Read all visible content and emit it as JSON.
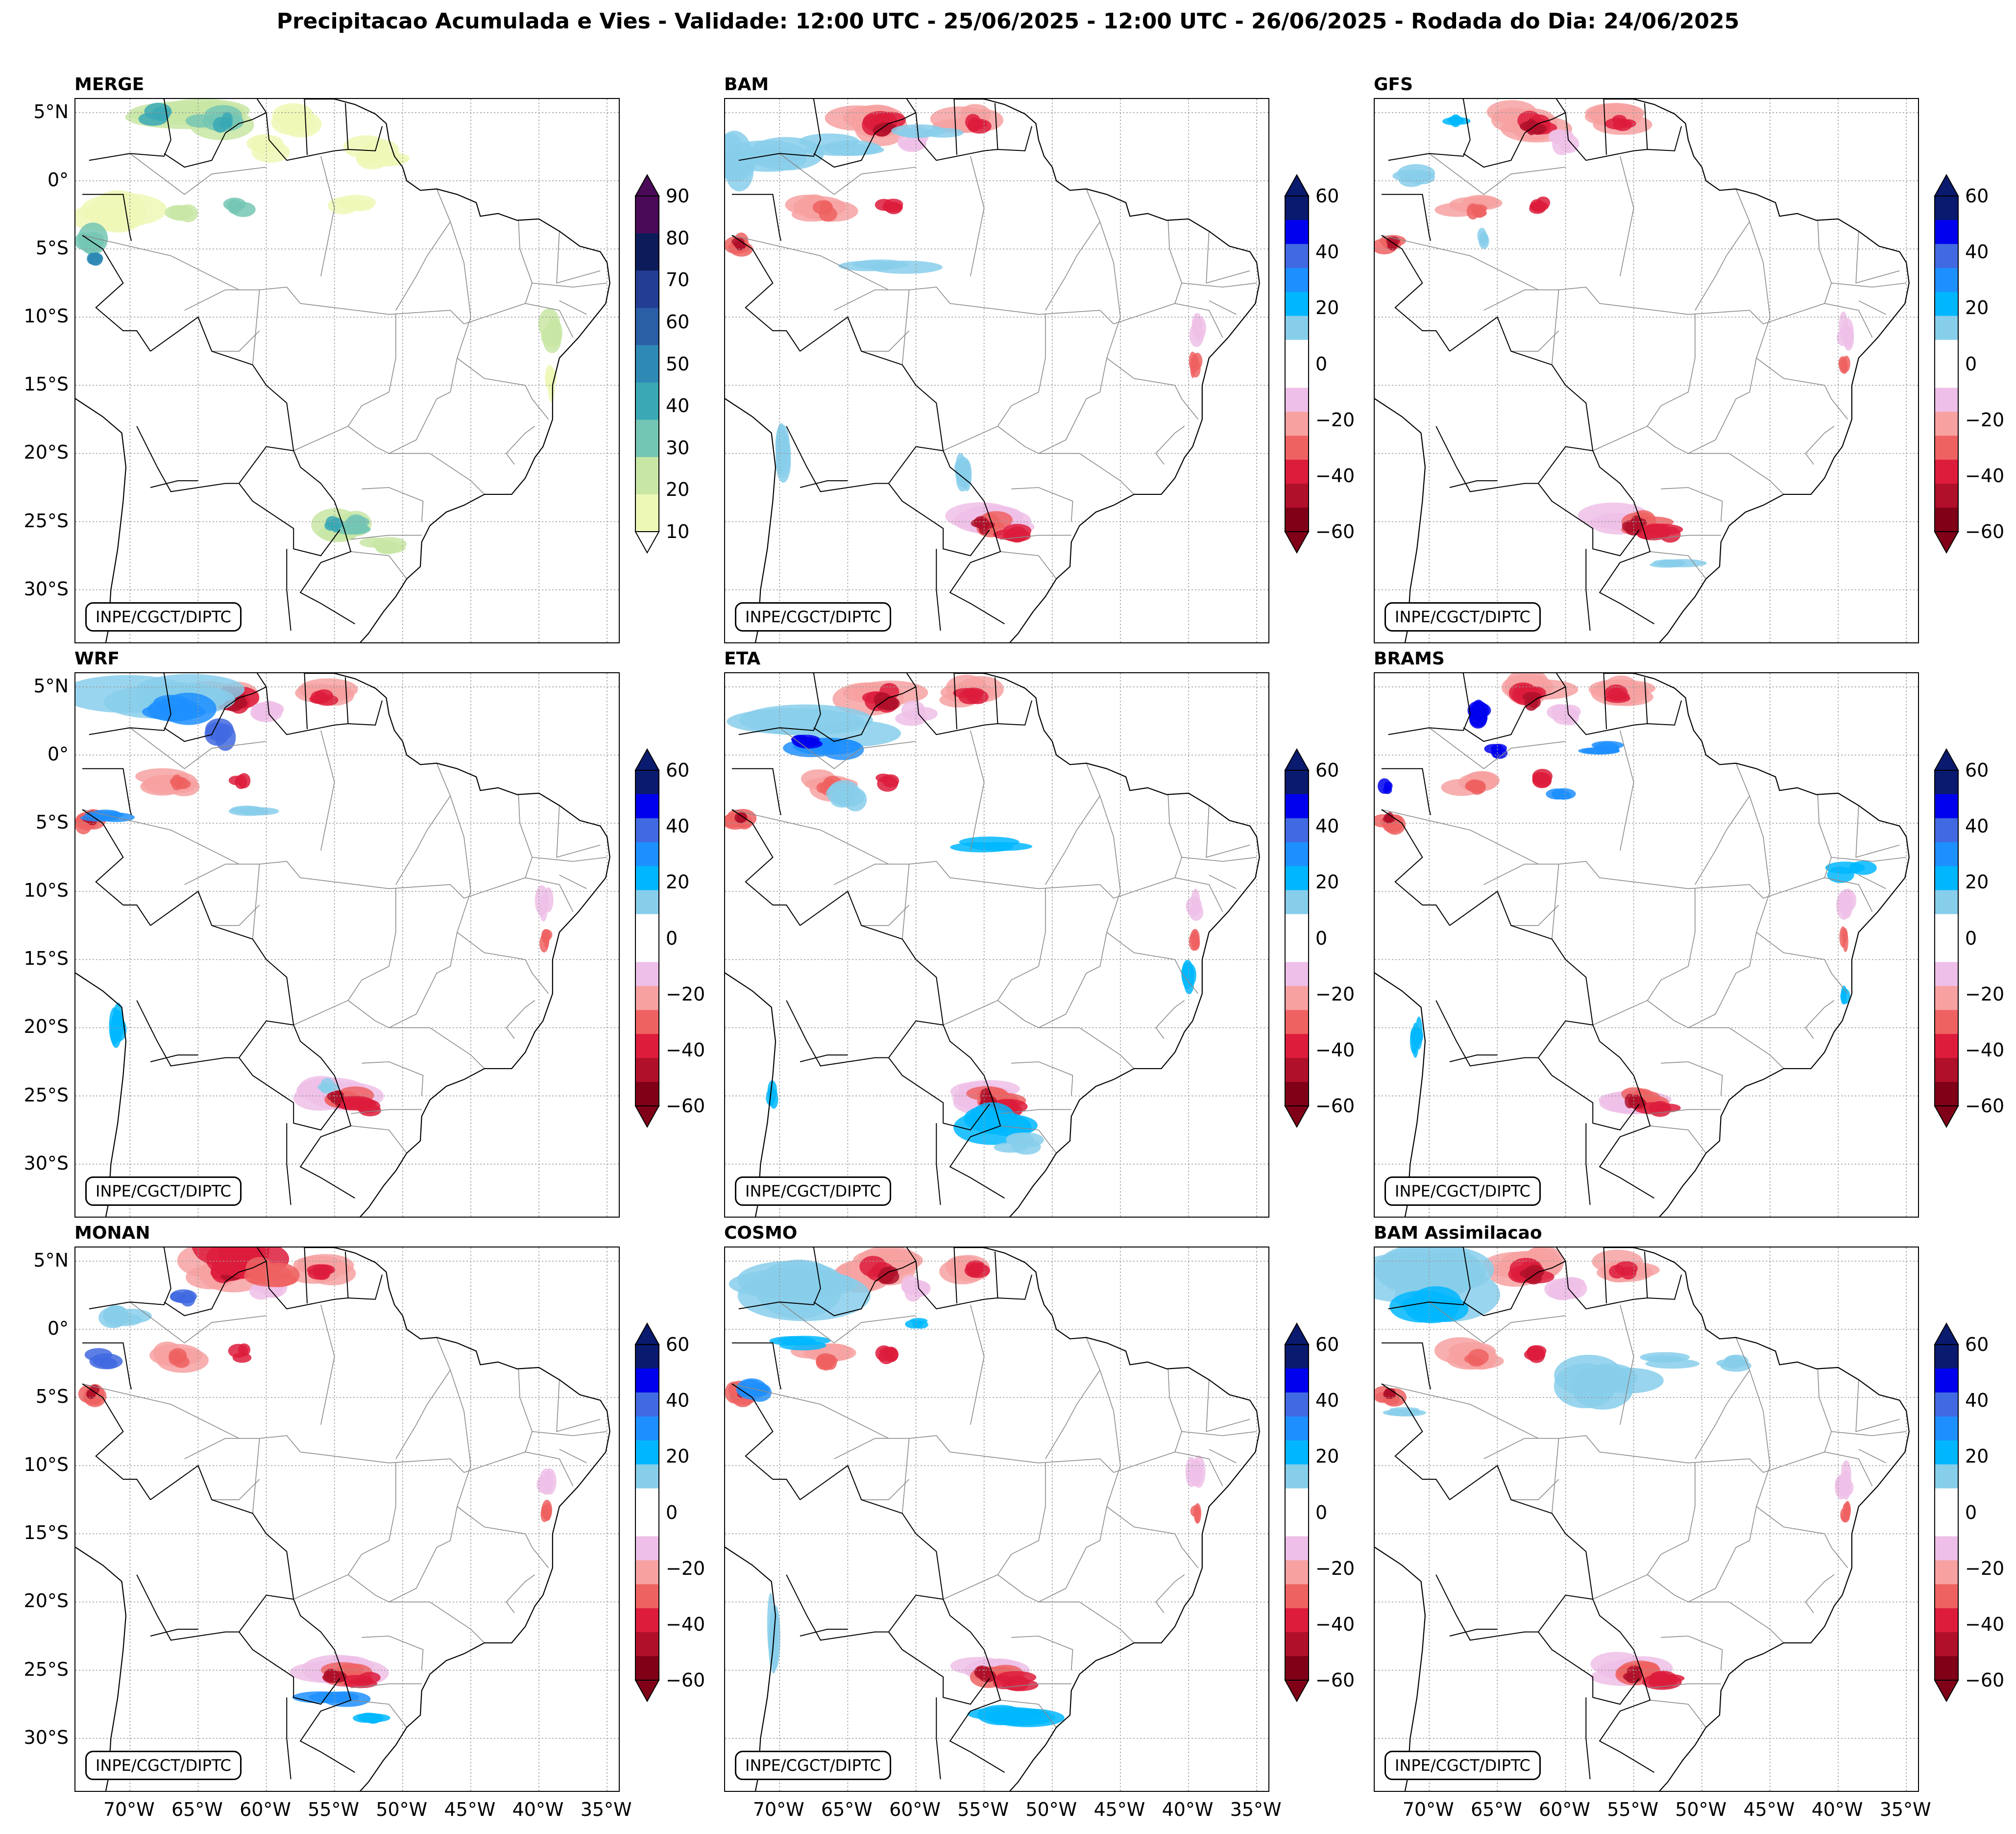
{
  "title": "Precipitacao Acumulada e Vies - Validade: 12:00 UTC - 25/06/2025 - 12:00 UTC - 26/06/2025 - Rodada do Dia: 24/06/2025",
  "credit": "INPE/CGCT/DIPTC",
  "lat_labels": [
    "5°N",
    "0°",
    "5°S",
    "10°S",
    "15°S",
    "20°S",
    "25°S",
    "30°S"
  ],
  "lon_labels": [
    "70°W",
    "65°W",
    "60°W",
    "55°W",
    "50°W",
    "45°W",
    "40°W",
    "35°W"
  ],
  "panels": [
    {
      "id": "merge",
      "title": "MERGE",
      "type": "precip"
    },
    {
      "id": "bam",
      "title": "BAM",
      "type": "bias"
    },
    {
      "id": "gfs",
      "title": "GFS",
      "type": "bias"
    },
    {
      "id": "wrf",
      "title": "WRF",
      "type": "bias"
    },
    {
      "id": "eta",
      "title": "ETA",
      "type": "bias"
    },
    {
      "id": "brams",
      "title": "BRAMS",
      "type": "bias"
    },
    {
      "id": "monan",
      "title": "MONAN",
      "type": "bias"
    },
    {
      "id": "cosmo",
      "title": "COSMO",
      "type": "bias"
    },
    {
      "id": "bamassim",
      "title": "BAM Assimilacao",
      "type": "bias"
    }
  ],
  "precip_scale": {
    "ticks": [
      "90",
      "80",
      "70",
      "60",
      "50",
      "40",
      "30",
      "20",
      "10"
    ],
    "colors": [
      "#4a0a57",
      "#0c1c5a",
      "#233d93",
      "#2a5fa6",
      "#2e89b5",
      "#3aa8b5",
      "#74c6b4",
      "#c8e6a4",
      "#eef8b6"
    ]
  },
  "bias_scale": {
    "ticks": [
      "60",
      "40",
      "20",
      "0",
      "−20",
      "−40",
      "−60"
    ],
    "colors": [
      "#0a1a6e",
      "#0000ee",
      "#4169e1",
      "#1e8fff",
      "#00b7ff",
      "#87ceeb",
      "#ffffff",
      "#ffffff",
      "#eebfe8",
      "#f7a1a1",
      "#ef6262",
      "#dd1c3c",
      "#b0102a",
      "#800018"
    ]
  }
}
